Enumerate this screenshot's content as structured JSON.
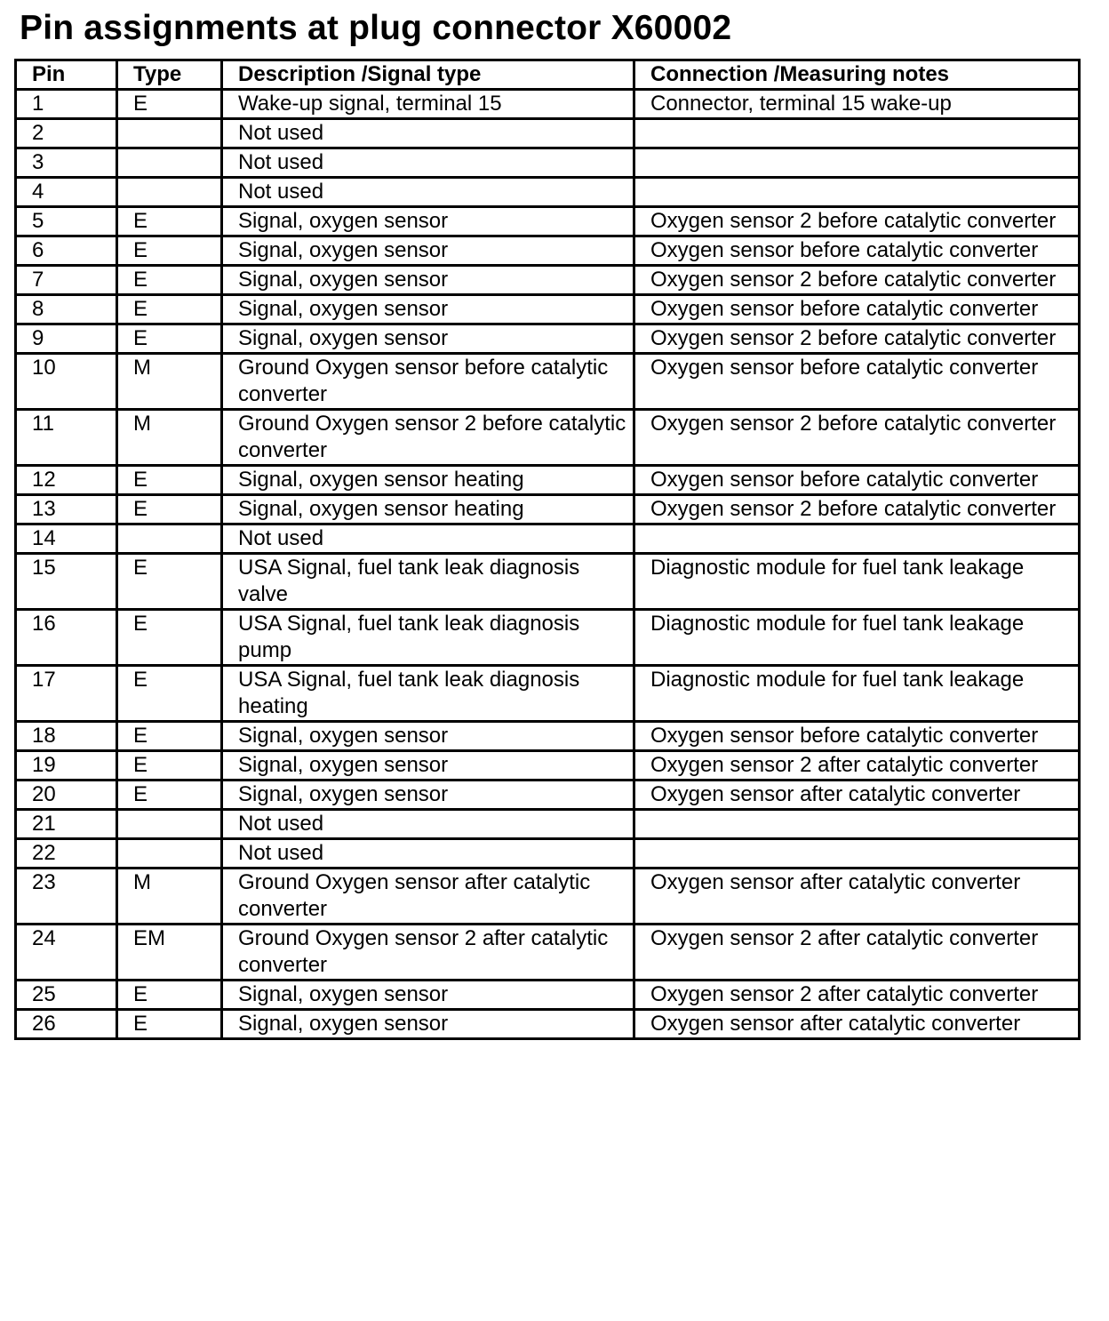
{
  "title": "Pin assignments at plug connector X60002",
  "table": {
    "headers": [
      "Pin",
      "Type",
      "Description /Signal type",
      "Connection /Measuring notes"
    ],
    "rows": [
      [
        "1",
        "E",
        "Wake-up signal, terminal 15",
        "Connector, terminal 15 wake-up"
      ],
      [
        "2",
        "",
        "Not used",
        ""
      ],
      [
        "3",
        "",
        "Not used",
        ""
      ],
      [
        "4",
        "",
        "Not used",
        ""
      ],
      [
        "5",
        "E",
        "Signal, oxygen sensor",
        "Oxygen sensor 2 before catalytic converter"
      ],
      [
        "6",
        "E",
        "Signal, oxygen sensor",
        "Oxygen sensor before catalytic converter"
      ],
      [
        "7",
        "E",
        "Signal, oxygen sensor",
        "Oxygen sensor 2 before catalytic converter"
      ],
      [
        "8",
        "E",
        "Signal, oxygen sensor",
        "Oxygen sensor before catalytic converter"
      ],
      [
        "9",
        "E",
        "Signal, oxygen sensor",
        "Oxygen sensor 2 before catalytic converter"
      ],
      [
        "10",
        "M",
        "Ground Oxygen sensor before catalytic converter",
        "Oxygen sensor before catalytic converter"
      ],
      [
        "11",
        "M",
        "Ground Oxygen sensor 2 before catalytic converter",
        "Oxygen sensor 2 before catalytic converter"
      ],
      [
        "12",
        "E",
        "Signal, oxygen sensor heating",
        "Oxygen sensor before catalytic converter"
      ],
      [
        "13",
        "E",
        "Signal, oxygen sensor heating",
        "Oxygen sensor 2 before catalytic converter"
      ],
      [
        "14",
        "",
        "Not used",
        ""
      ],
      [
        "15",
        "E",
        "USA Signal, fuel tank leak diagnosis valve",
        "Diagnostic module for fuel tank leakage"
      ],
      [
        "16",
        "E",
        "USA Signal, fuel tank leak diagnosis pump",
        "Diagnostic module for fuel tank leakage"
      ],
      [
        "17",
        "E",
        "USA Signal, fuel tank leak diagnosis heating",
        "Diagnostic module for fuel tank leakage"
      ],
      [
        "18",
        "E",
        "Signal, oxygen sensor",
        "Oxygen sensor before catalytic converter"
      ],
      [
        "19",
        "E",
        "Signal, oxygen sensor",
        "Oxygen sensor 2 after catalytic converter"
      ],
      [
        "20",
        "E",
        "Signal, oxygen sensor",
        "Oxygen sensor after catalytic converter"
      ],
      [
        "21",
        "",
        "Not used",
        ""
      ],
      [
        "22",
        "",
        "Not used",
        ""
      ],
      [
        "23",
        "M",
        "Ground Oxygen sensor after catalytic converter",
        "Oxygen sensor after catalytic converter"
      ],
      [
        "24",
        "EM",
        "Ground Oxygen sensor 2 after catalytic converter",
        "Oxygen sensor 2 after catalytic converter"
      ],
      [
        "25",
        "E",
        "Signal, oxygen sensor",
        "Oxygen sensor 2 after catalytic converter"
      ],
      [
        "26",
        "E",
        "Signal, oxygen sensor",
        "Oxygen sensor after catalytic converter"
      ]
    ]
  }
}
